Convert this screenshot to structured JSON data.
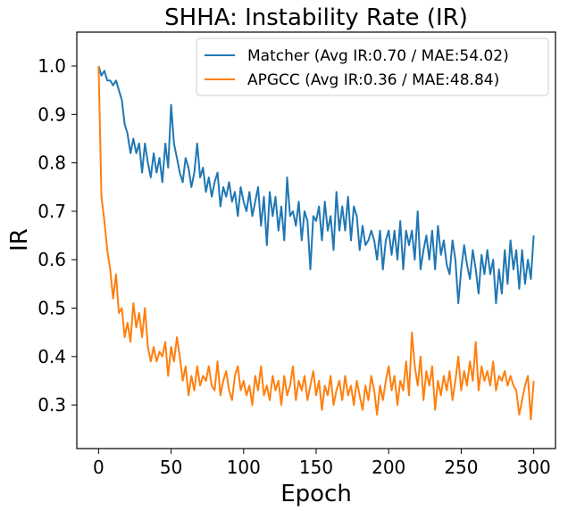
{
  "chart_data": {
    "type": "line",
    "title": "SHHA: Instability Rate (IR)",
    "xlabel": "Epoch",
    "ylabel": "IR",
    "xlim": [
      -15,
      315
    ],
    "ylim": [
      0.21,
      1.07
    ],
    "xticks": [
      0,
      50,
      100,
      150,
      200,
      250,
      300
    ],
    "yticks": [
      0.3,
      0.4,
      0.5,
      0.6,
      0.7,
      0.8,
      0.9,
      1.0
    ],
    "ytick_labels": [
      "0.3",
      "0.4",
      "0.5",
      "0.6",
      "0.7",
      "0.8",
      "0.9",
      "1.0"
    ],
    "grid": false,
    "legend_position": "top-right",
    "series": [
      {
        "name": "Matcher (Avg IR:0.70 / MAE:54.02)",
        "color": "#1f77b4",
        "x": [
          0,
          2,
          4,
          6,
          8,
          10,
          12,
          14,
          16,
          18,
          20,
          22,
          24,
          26,
          28,
          30,
          32,
          34,
          36,
          38,
          40,
          42,
          44,
          46,
          48,
          50,
          52,
          54,
          56,
          58,
          60,
          62,
          64,
          66,
          68,
          70,
          72,
          74,
          76,
          78,
          80,
          82,
          84,
          86,
          88,
          90,
          92,
          94,
          96,
          98,
          100,
          102,
          104,
          106,
          108,
          110,
          112,
          114,
          116,
          118,
          120,
          122,
          124,
          126,
          128,
          130,
          132,
          134,
          136,
          138,
          140,
          142,
          144,
          146,
          148,
          150,
          152,
          154,
          156,
          158,
          160,
          162,
          164,
          166,
          168,
          170,
          172,
          174,
          176,
          178,
          180,
          182,
          184,
          186,
          188,
          190,
          192,
          194,
          196,
          198,
          200,
          202,
          204,
          206,
          208,
          210,
          212,
          214,
          216,
          218,
          220,
          222,
          224,
          226,
          228,
          230,
          232,
          234,
          236,
          238,
          240,
          242,
          244,
          246,
          248,
          250,
          252,
          254,
          256,
          258,
          260,
          262,
          264,
          266,
          268,
          270,
          272,
          274,
          276,
          278,
          280,
          282,
          284,
          286,
          288,
          290,
          292,
          294,
          296,
          298,
          300
        ],
        "y": [
          1.0,
          0.98,
          0.99,
          0.97,
          0.97,
          0.96,
          0.97,
          0.95,
          0.93,
          0.88,
          0.86,
          0.82,
          0.85,
          0.82,
          0.84,
          0.78,
          0.84,
          0.8,
          0.77,
          0.82,
          0.78,
          0.81,
          0.76,
          0.84,
          0.79,
          0.92,
          0.84,
          0.81,
          0.78,
          0.76,
          0.81,
          0.79,
          0.75,
          0.78,
          0.84,
          0.77,
          0.79,
          0.74,
          0.77,
          0.73,
          0.76,
          0.78,
          0.71,
          0.75,
          0.73,
          0.76,
          0.72,
          0.74,
          0.69,
          0.75,
          0.72,
          0.7,
          0.74,
          0.69,
          0.72,
          0.75,
          0.67,
          0.73,
          0.63,
          0.74,
          0.69,
          0.73,
          0.66,
          0.71,
          0.64,
          0.77,
          0.69,
          0.7,
          0.67,
          0.72,
          0.64,
          0.7,
          0.68,
          0.58,
          0.69,
          0.68,
          0.71,
          0.64,
          0.72,
          0.66,
          0.69,
          0.62,
          0.74,
          0.66,
          0.71,
          0.66,
          0.73,
          0.64,
          0.71,
          0.69,
          0.62,
          0.67,
          0.63,
          0.64,
          0.66,
          0.64,
          0.6,
          0.66,
          0.58,
          0.64,
          0.66,
          0.61,
          0.66,
          0.6,
          0.68,
          0.58,
          0.66,
          0.63,
          0.66,
          0.6,
          0.7,
          0.58,
          0.62,
          0.65,
          0.6,
          0.66,
          0.58,
          0.67,
          0.61,
          0.64,
          0.59,
          0.57,
          0.64,
          0.6,
          0.51,
          0.58,
          0.63,
          0.59,
          0.56,
          0.62,
          0.58,
          0.53,
          0.61,
          0.57,
          0.62,
          0.57,
          0.6,
          0.51,
          0.58,
          0.53,
          0.62,
          0.55,
          0.64,
          0.58,
          0.62,
          0.54,
          0.62,
          0.55,
          0.6,
          0.56,
          0.65
        ]
      },
      {
        "name": "APGCC (Avg IR:0.36 / MAE:48.84)",
        "color": "#ff7f0e",
        "x": [
          0,
          2,
          4,
          6,
          8,
          10,
          12,
          14,
          16,
          18,
          20,
          22,
          24,
          26,
          28,
          30,
          32,
          34,
          36,
          38,
          40,
          42,
          44,
          46,
          48,
          50,
          52,
          54,
          56,
          58,
          60,
          62,
          64,
          66,
          68,
          70,
          72,
          74,
          76,
          78,
          80,
          82,
          84,
          86,
          88,
          90,
          92,
          94,
          96,
          98,
          100,
          102,
          104,
          106,
          108,
          110,
          112,
          114,
          116,
          118,
          120,
          122,
          124,
          126,
          128,
          130,
          132,
          134,
          136,
          138,
          140,
          142,
          144,
          146,
          148,
          150,
          152,
          154,
          156,
          158,
          160,
          162,
          164,
          166,
          168,
          170,
          172,
          174,
          176,
          178,
          180,
          182,
          184,
          186,
          188,
          190,
          192,
          194,
          196,
          198,
          200,
          202,
          204,
          206,
          208,
          210,
          212,
          214,
          216,
          218,
          220,
          222,
          224,
          226,
          228,
          230,
          232,
          234,
          236,
          238,
          240,
          242,
          244,
          246,
          248,
          250,
          252,
          254,
          256,
          258,
          260,
          262,
          264,
          266,
          268,
          270,
          272,
          274,
          276,
          278,
          280,
          282,
          284,
          286,
          288,
          290,
          292,
          294,
          296,
          298,
          300
        ],
        "y": [
          1.0,
          0.73,
          0.68,
          0.62,
          0.58,
          0.52,
          0.57,
          0.49,
          0.5,
          0.44,
          0.47,
          0.43,
          0.51,
          0.46,
          0.49,
          0.44,
          0.5,
          0.42,
          0.39,
          0.42,
          0.39,
          0.41,
          0.4,
          0.43,
          0.36,
          0.42,
          0.39,
          0.44,
          0.4,
          0.35,
          0.38,
          0.32,
          0.36,
          0.33,
          0.38,
          0.34,
          0.36,
          0.35,
          0.38,
          0.34,
          0.33,
          0.39,
          0.32,
          0.35,
          0.37,
          0.33,
          0.31,
          0.36,
          0.38,
          0.33,
          0.35,
          0.32,
          0.34,
          0.3,
          0.36,
          0.33,
          0.38,
          0.32,
          0.34,
          0.31,
          0.36,
          0.33,
          0.35,
          0.3,
          0.36,
          0.32,
          0.34,
          0.38,
          0.31,
          0.35,
          0.33,
          0.36,
          0.31,
          0.34,
          0.37,
          0.32,
          0.35,
          0.29,
          0.34,
          0.32,
          0.36,
          0.3,
          0.33,
          0.35,
          0.31,
          0.36,
          0.32,
          0.34,
          0.3,
          0.35,
          0.32,
          0.29,
          0.34,
          0.31,
          0.36,
          0.33,
          0.28,
          0.34,
          0.31,
          0.35,
          0.38,
          0.33,
          0.36,
          0.3,
          0.35,
          0.33,
          0.39,
          0.32,
          0.45,
          0.38,
          0.34,
          0.4,
          0.31,
          0.37,
          0.34,
          0.38,
          0.29,
          0.35,
          0.32,
          0.36,
          0.33,
          0.37,
          0.31,
          0.35,
          0.4,
          0.33,
          0.37,
          0.34,
          0.39,
          0.35,
          0.43,
          0.33,
          0.38,
          0.35,
          0.37,
          0.34,
          0.39,
          0.33,
          0.36,
          0.35,
          0.37,
          0.34,
          0.36,
          0.34,
          0.33,
          0.28,
          0.31,
          0.34,
          0.36,
          0.27,
          0.35
        ]
      }
    ]
  }
}
